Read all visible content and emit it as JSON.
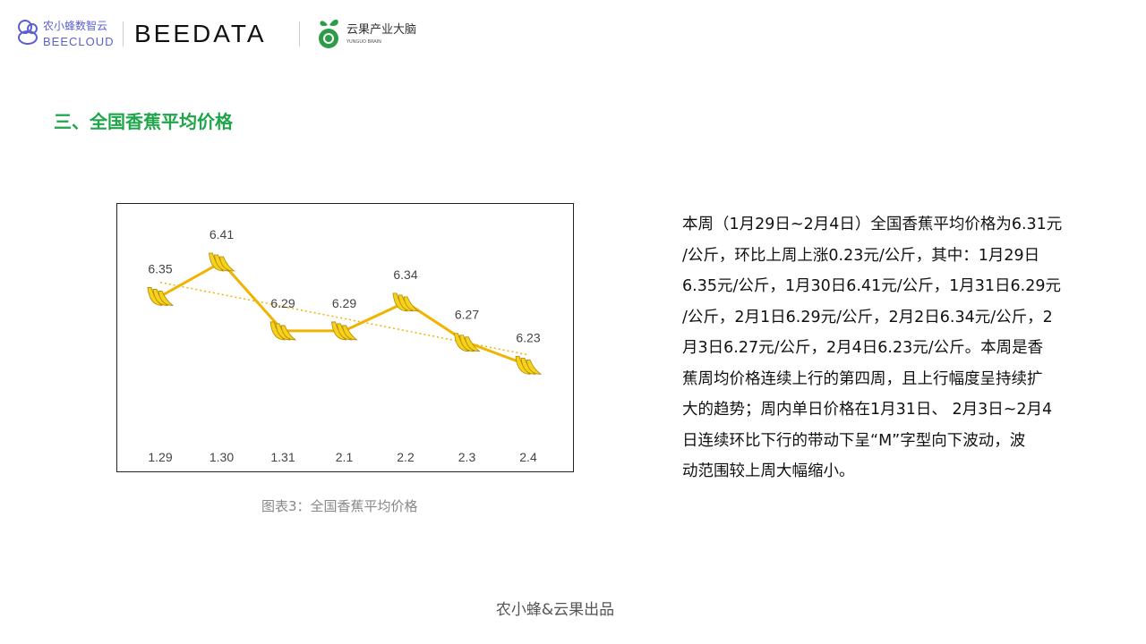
{
  "header": {
    "logo1_cn": "农小蜂数智云",
    "logo1_en": "BEECLOUD",
    "logo2": "BEEDATA",
    "logo3_cn": "云果产业大脑",
    "logo3_en": "YUNGUO BRAIN"
  },
  "section_title": "三、全国香蕉平均价格",
  "chart_data": {
    "type": "line",
    "categories": [
      "1.29",
      "1.30",
      "1.31",
      "2.1",
      "2.2",
      "2.3",
      "2.4"
    ],
    "values": [
      6.35,
      6.41,
      6.29,
      6.29,
      6.34,
      6.27,
      6.23
    ],
    "data_labels": [
      "6.35",
      "6.41",
      "6.29",
      "6.29",
      "6.34",
      "6.27",
      "6.23"
    ],
    "trendline": "linear",
    "marker": "banana",
    "line_color": "#f0b400",
    "trend_color": "#f0b400",
    "grid": false,
    "legend": "none"
  },
  "caption": "图表3：全国香蕉平均价格",
  "paragraph_lines": [
    "本周（1月29日~2月4日）全国香蕉平均价格为6.31元",
    "/公斤，环比上周上涨0.23元/公斤，其中：1月29日",
    "6.35元/公斤，1月30日6.41元/公斤，1月31日6.29元",
    "/公斤，2月1日6.29元/公斤，2月2日6.34元/公斤，2",
    "月3日6.27元/公斤，2月4日6.23元/公斤。本周是香",
    "蕉周均价格连续上行的第四周，且上行幅度呈持续扩",
    "大的趋势；周内单日价格在1月31日、 2月3日~2月4",
    "日连续环比下行的带动下呈“M”字型向下波动，波",
    "动范围较上周大幅缩小。"
  ],
  "footer": "农小蜂&云果出品"
}
